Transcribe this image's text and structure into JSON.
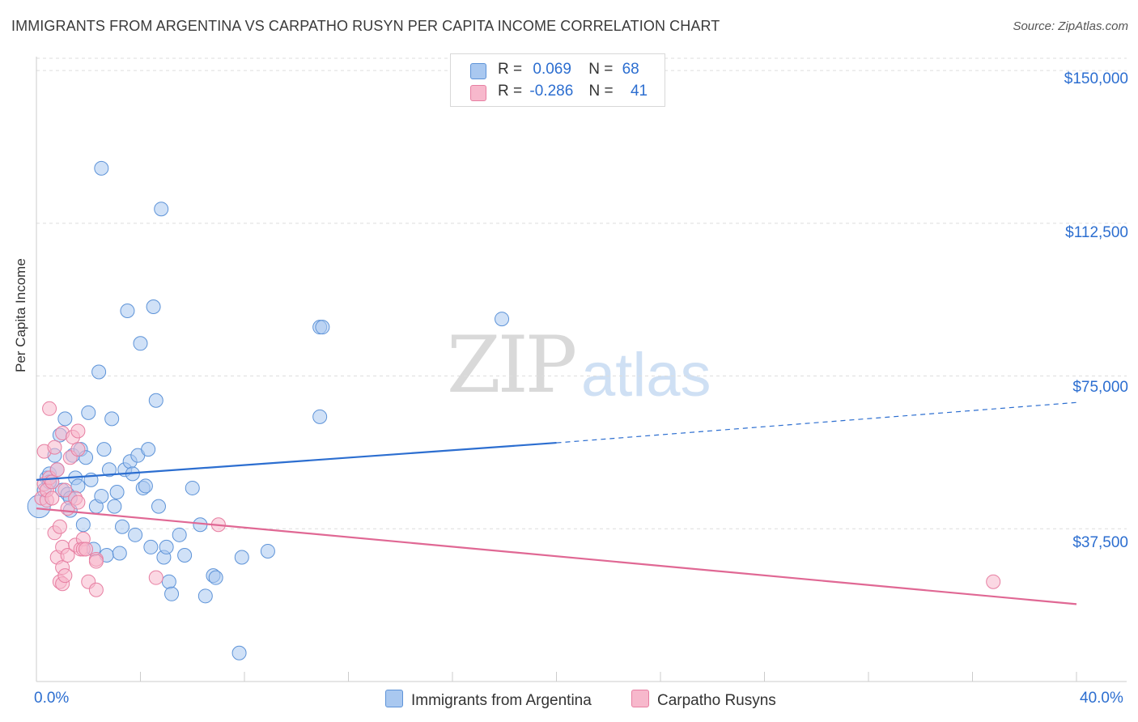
{
  "title": "IMMIGRANTS FROM ARGENTINA VS CARPATHO RUSYN PER CAPITA INCOME CORRELATION CHART",
  "source": "Source: ZipAtlas.com",
  "watermark": {
    "zip": "ZIP",
    "atlas": "atlas"
  },
  "legend_top": {
    "rows": [
      {
        "r_label": "R =",
        "r_value": "0.069",
        "n_label": "N =",
        "n_value": "68"
      },
      {
        "r_label": "R =",
        "r_value": "-0.286",
        "n_label": "N =",
        "n_value": "41"
      }
    ]
  },
  "legend_bottom": [
    "Immigrants from Argentina",
    "Carpatho Rusyns"
  ],
  "colors": {
    "series1_fill": "#a9c8f0",
    "series1_stroke": "#5d93d8",
    "series1_line": "#2c6ed0",
    "series2_fill": "#f7b8cc",
    "series2_stroke": "#e77fa2",
    "series2_line": "#e06894",
    "grid": "#dddddd",
    "axis": "#cccccc",
    "tick_text": "#2c6ed0"
  },
  "chart_data": {
    "type": "scatter",
    "title": "IMMIGRANTS FROM ARGENTINA VS CARPATHO RUSYN PER CAPITA INCOME CORRELATION CHART",
    "xlabel": "",
    "ylabel": "Per Capita Income",
    "xlim": [
      0,
      40
    ],
    "ylim": [
      0,
      153000
    ],
    "x_tick_labels": [
      "0.0%",
      "40.0%"
    ],
    "y_ticks": [
      37500,
      75000,
      112500,
      150000
    ],
    "y_tick_labels": [
      "$37,500",
      "$75,000",
      "$112,500",
      "$150,000"
    ],
    "legend_position": "top-center",
    "series": [
      {
        "name": "Immigrants from Argentina",
        "r": 0.069,
        "n": 68,
        "trend": {
          "x0": 0,
          "y0": 49500,
          "x1": 20,
          "y1": 58600,
          "dashed_to_x": 40,
          "dashed_to_y": 68500
        },
        "points": [
          [
            0.1,
            43000
          ],
          [
            0.3,
            47000
          ],
          [
            0.4,
            50000
          ],
          [
            0.5,
            51000
          ],
          [
            0.6,
            49000
          ],
          [
            0.7,
            55500
          ],
          [
            0.8,
            52000
          ],
          [
            0.9,
            60500
          ],
          [
            1.0,
            47000
          ],
          [
            1.1,
            64500
          ],
          [
            1.2,
            46000
          ],
          [
            1.3,
            45000
          ],
          [
            1.4,
            55500
          ],
          [
            1.5,
            50000
          ],
          [
            1.6,
            48000
          ],
          [
            1.7,
            57000
          ],
          [
            1.8,
            38500
          ],
          [
            1.9,
            55000
          ],
          [
            2.0,
            66000
          ],
          [
            2.1,
            49500
          ],
          [
            2.2,
            32500
          ],
          [
            2.3,
            43000
          ],
          [
            2.4,
            76000
          ],
          [
            2.5,
            45500
          ],
          [
            2.6,
            57000
          ],
          [
            2.7,
            31000
          ],
          [
            2.8,
            52000
          ],
          [
            2.9,
            64500
          ],
          [
            3.0,
            43000
          ],
          [
            3.1,
            46500
          ],
          [
            3.2,
            31500
          ],
          [
            3.3,
            38000
          ],
          [
            3.4,
            52000
          ],
          [
            3.5,
            91000
          ],
          [
            3.6,
            54000
          ],
          [
            3.7,
            51000
          ],
          [
            3.8,
            36000
          ],
          [
            3.9,
            55500
          ],
          [
            4.0,
            83000
          ],
          [
            4.1,
            47500
          ],
          [
            4.2,
            48000
          ],
          [
            4.3,
            57000
          ],
          [
            4.4,
            33000
          ],
          [
            4.5,
            92000
          ],
          [
            4.6,
            69000
          ],
          [
            4.7,
            43000
          ],
          [
            4.8,
            116000
          ],
          [
            4.9,
            30500
          ],
          [
            5.0,
            33000
          ],
          [
            5.1,
            24500
          ],
          [
            5.2,
            21500
          ],
          [
            5.5,
            36000
          ],
          [
            5.7,
            31000
          ],
          [
            6.0,
            47500
          ],
          [
            6.3,
            38500
          ],
          [
            6.5,
            21000
          ],
          [
            6.8,
            26000
          ],
          [
            6.9,
            25500
          ],
          [
            7.8,
            7000
          ],
          [
            7.9,
            30500
          ],
          [
            8.9,
            32000
          ],
          [
            10.9,
            65000
          ],
          [
            10.9,
            87000
          ],
          [
            11.0,
            87000
          ],
          [
            17.9,
            89000
          ],
          [
            2.5,
            126000
          ],
          [
            0.5,
            49000
          ],
          [
            1.3,
            42000
          ]
        ]
      },
      {
        "name": "Carpatho Rusyns",
        "r": -0.286,
        "n": 41,
        "trend": {
          "x0": 0,
          "y0": 42500,
          "x1": 40,
          "y1": 19000
        },
        "points": [
          [
            0.2,
            45000
          ],
          [
            0.3,
            48500
          ],
          [
            0.3,
            56500
          ],
          [
            0.4,
            44500
          ],
          [
            0.4,
            47000
          ],
          [
            0.5,
            50000
          ],
          [
            0.5,
            67000
          ],
          [
            0.6,
            45000
          ],
          [
            0.6,
            49000
          ],
          [
            0.7,
            57500
          ],
          [
            0.7,
            36500
          ],
          [
            0.8,
            52000
          ],
          [
            0.8,
            30500
          ],
          [
            0.9,
            38000
          ],
          [
            0.9,
            24500
          ],
          [
            1.0,
            28000
          ],
          [
            1.0,
            33000
          ],
          [
            1.0,
            24000
          ],
          [
            1.0,
            61000
          ],
          [
            1.1,
            26000
          ],
          [
            1.1,
            47000
          ],
          [
            1.2,
            31000
          ],
          [
            1.2,
            42500
          ],
          [
            1.3,
            55000
          ],
          [
            1.4,
            60000
          ],
          [
            1.5,
            45000
          ],
          [
            1.5,
            33500
          ],
          [
            1.6,
            61500
          ],
          [
            1.6,
            57000
          ],
          [
            1.6,
            44000
          ],
          [
            1.7,
            32500
          ],
          [
            1.8,
            35000
          ],
          [
            1.8,
            32500
          ],
          [
            1.9,
            32500
          ],
          [
            2.0,
            24500
          ],
          [
            2.3,
            22500
          ],
          [
            2.3,
            30000
          ],
          [
            2.3,
            29500
          ],
          [
            4.6,
            25500
          ],
          [
            7.0,
            38500
          ],
          [
            36.8,
            24500
          ]
        ]
      }
    ]
  }
}
